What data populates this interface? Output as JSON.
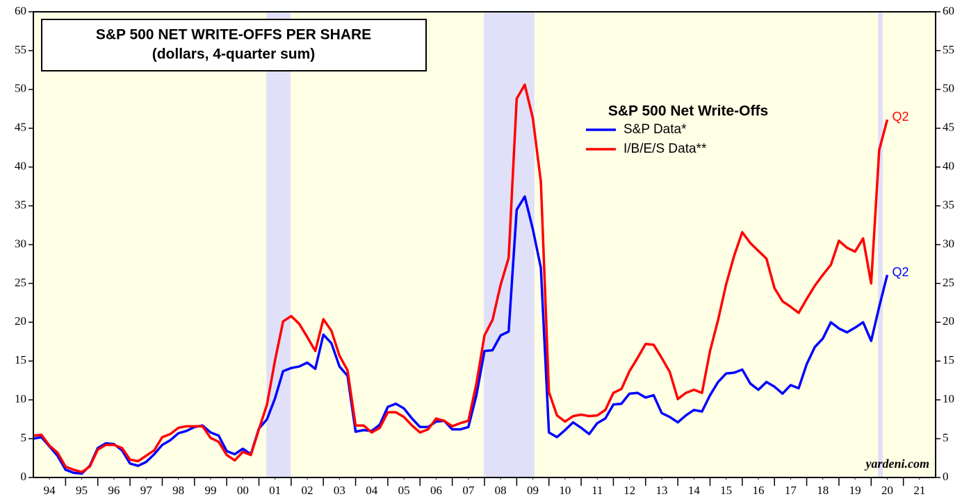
{
  "chart_data": {
    "type": "line",
    "title": "S&P 500 NET WRITE-OFFS PER SHARE",
    "subtitle": "(dollars, 4-quarter sum)",
    "legend_title": "S&P 500 Net Write-Offs",
    "source": "yardeni.com",
    "background": "#ffffe6",
    "recession_color": "#e0e0f8",
    "recessions": [
      [
        2001.23,
        2001.98
      ],
      [
        2007.98,
        2009.55
      ],
      [
        2020.21,
        2020.36
      ]
    ],
    "xlim": [
      1994,
      2022
    ],
    "xticks": [
      {
        "value": 1994.5,
        "label": "94"
      },
      {
        "value": 1995.5,
        "label": "95"
      },
      {
        "value": 1996.5,
        "label": "96"
      },
      {
        "value": 1997.5,
        "label": "97"
      },
      {
        "value": 1998.5,
        "label": "98"
      },
      {
        "value": 1999.5,
        "label": "99"
      },
      {
        "value": 2000.5,
        "label": "00"
      },
      {
        "value": 2001.5,
        "label": "01"
      },
      {
        "value": 2002.5,
        "label": "02"
      },
      {
        "value": 2003.5,
        "label": "03"
      },
      {
        "value": 2004.5,
        "label": "04"
      },
      {
        "value": 2005.5,
        "label": "05"
      },
      {
        "value": 2006.5,
        "label": "06"
      },
      {
        "value": 2007.5,
        "label": "07"
      },
      {
        "value": 2008.5,
        "label": "08"
      },
      {
        "value": 2009.5,
        "label": "09"
      },
      {
        "value": 2010.5,
        "label": "10"
      },
      {
        "value": 2011.5,
        "label": "11"
      },
      {
        "value": 2012.5,
        "label": "12"
      },
      {
        "value": 2013.5,
        "label": "13"
      },
      {
        "value": 2014.5,
        "label": "14"
      },
      {
        "value": 2015.5,
        "label": "15"
      },
      {
        "value": 2016.5,
        "label": "16"
      },
      {
        "value": 2017.5,
        "label": "17"
      },
      {
        "value": 2018.5,
        "label": "18"
      },
      {
        "value": 2019.5,
        "label": "19"
      },
      {
        "value": 2020.5,
        "label": "20"
      },
      {
        "value": 2021.5,
        "label": "21"
      }
    ],
    "ylim": [
      0,
      60
    ],
    "yticks": [
      0,
      5,
      10,
      15,
      20,
      25,
      30,
      35,
      40,
      45,
      50,
      55,
      60
    ],
    "y2lim": [
      0,
      60
    ],
    "y2ticks": [
      0,
      5,
      10,
      15,
      20,
      25,
      30,
      35,
      40,
      45,
      50,
      55,
      60
    ],
    "x": [
      1994,
      1994.25,
      1994.5,
      1994.75,
      1995,
      1995.25,
      1995.5,
      1995.75,
      1996,
      1996.25,
      1996.5,
      1996.75,
      1997,
      1997.25,
      1997.5,
      1997.75,
      1998,
      1998.25,
      1998.5,
      1998.75,
      1999,
      1999.25,
      1999.5,
      1999.75,
      2000,
      2000.25,
      2000.5,
      2000.75,
      2001,
      2001.25,
      2001.5,
      2001.75,
      2002,
      2002.25,
      2002.5,
      2002.75,
      2003,
      2003.25,
      2003.5,
      2003.75,
      2004,
      2004.25,
      2004.5,
      2004.75,
      2005,
      2005.25,
      2005.5,
      2005.75,
      2006,
      2006.25,
      2006.5,
      2006.75,
      2007,
      2007.25,
      2007.5,
      2007.75,
      2008,
      2008.25,
      2008.5,
      2008.75,
      2009,
      2009.25,
      2009.5,
      2009.75,
      2010,
      2010.25,
      2010.5,
      2010.75,
      2011,
      2011.25,
      2011.5,
      2011.75,
      2012,
      2012.25,
      2012.5,
      2012.75,
      2013,
      2013.25,
      2013.5,
      2013.75,
      2014,
      2014.25,
      2014.5,
      2014.75,
      2015,
      2015.25,
      2015.5,
      2015.75,
      2016,
      2016.25,
      2016.5,
      2016.75,
      2017,
      2017.25,
      2017.5,
      2017.75,
      2018,
      2018.25,
      2018.5,
      2018.75,
      2019,
      2019.25,
      2019.5,
      2019.75,
      2020,
      2020.25,
      2020.5
    ],
    "series": [
      {
        "name": "S&P Data*",
        "color": "#0000ff",
        "end_label": "Q2",
        "values": [
          5.0,
          5.2,
          4.0,
          2.8,
          1.0,
          0.6,
          0.5,
          1.5,
          3.8,
          4.4,
          4.3,
          3.5,
          1.8,
          1.5,
          2.0,
          3.0,
          4.2,
          4.8,
          5.7,
          6.0,
          6.5,
          6.7,
          5.8,
          5.4,
          3.4,
          3.0,
          3.7,
          3.0,
          6.3,
          7.5,
          10.2,
          13.7,
          14.1,
          14.3,
          14.8,
          14.0,
          18.4,
          17.3,
          14.3,
          13.1,
          5.9,
          6.1,
          6.0,
          6.8,
          9.1,
          9.5,
          8.9,
          7.6,
          6.5,
          6.5,
          7.2,
          7.3,
          6.2,
          6.2,
          6.5,
          10.6,
          16.3,
          16.4,
          18.3,
          18.8,
          34.5,
          36.2,
          32.0,
          27.0,
          5.8,
          5.2,
          6.1,
          7.1,
          6.4,
          5.6,
          7.0,
          7.6,
          9.4,
          9.5,
          10.8,
          10.9,
          10.3,
          10.6,
          8.3,
          7.8,
          7.1,
          8.0,
          8.7,
          8.5,
          10.6,
          12.3,
          13.4,
          13.5,
          13.9,
          12.1,
          11.3,
          12.3,
          11.7,
          10.8,
          11.9,
          11.5,
          14.6,
          16.8,
          17.9,
          20.0,
          19.2,
          18.7,
          19.3,
          20.0,
          17.6,
          22.0,
          26.1
        ]
      },
      {
        "name": "I/B/E/S Data**",
        "color": "#ff0000",
        "end_label": "Q2",
        "values": [
          5.4,
          5.5,
          4.1,
          3.2,
          1.4,
          1.0,
          0.7,
          1.4,
          3.6,
          4.2,
          4.2,
          3.8,
          2.3,
          2.1,
          2.8,
          3.5,
          5.2,
          5.6,
          6.4,
          6.6,
          6.6,
          6.6,
          5.1,
          4.6,
          2.9,
          2.2,
          3.3,
          2.9,
          6.2,
          9.4,
          15.1,
          20.1,
          20.8,
          19.8,
          18.1,
          16.3,
          20.4,
          18.9,
          15.7,
          13.8,
          6.7,
          6.7,
          5.8,
          6.4,
          8.4,
          8.4,
          7.8,
          6.7,
          5.8,
          6.2,
          7.6,
          7.3,
          6.6,
          7.0,
          7.3,
          12.1,
          18.3,
          20.3,
          24.8,
          28.3,
          48.8,
          50.6,
          46.3,
          38.1,
          11.0,
          8.0,
          7.2,
          7.9,
          8.1,
          7.9,
          8.0,
          8.7,
          10.9,
          11.4,
          13.7,
          15.4,
          17.2,
          17.1,
          15.4,
          13.6,
          10.1,
          10.9,
          11.3,
          10.9,
          16.3,
          20.3,
          24.9,
          28.6,
          31.6,
          30.2,
          29.2,
          28.2,
          24.4,
          22.7,
          22.0,
          21.2,
          23.0,
          24.7,
          26.1,
          27.4,
          30.5,
          29.6,
          29.1,
          30.8,
          25.0,
          42.2,
          46.1
        ]
      }
    ]
  }
}
